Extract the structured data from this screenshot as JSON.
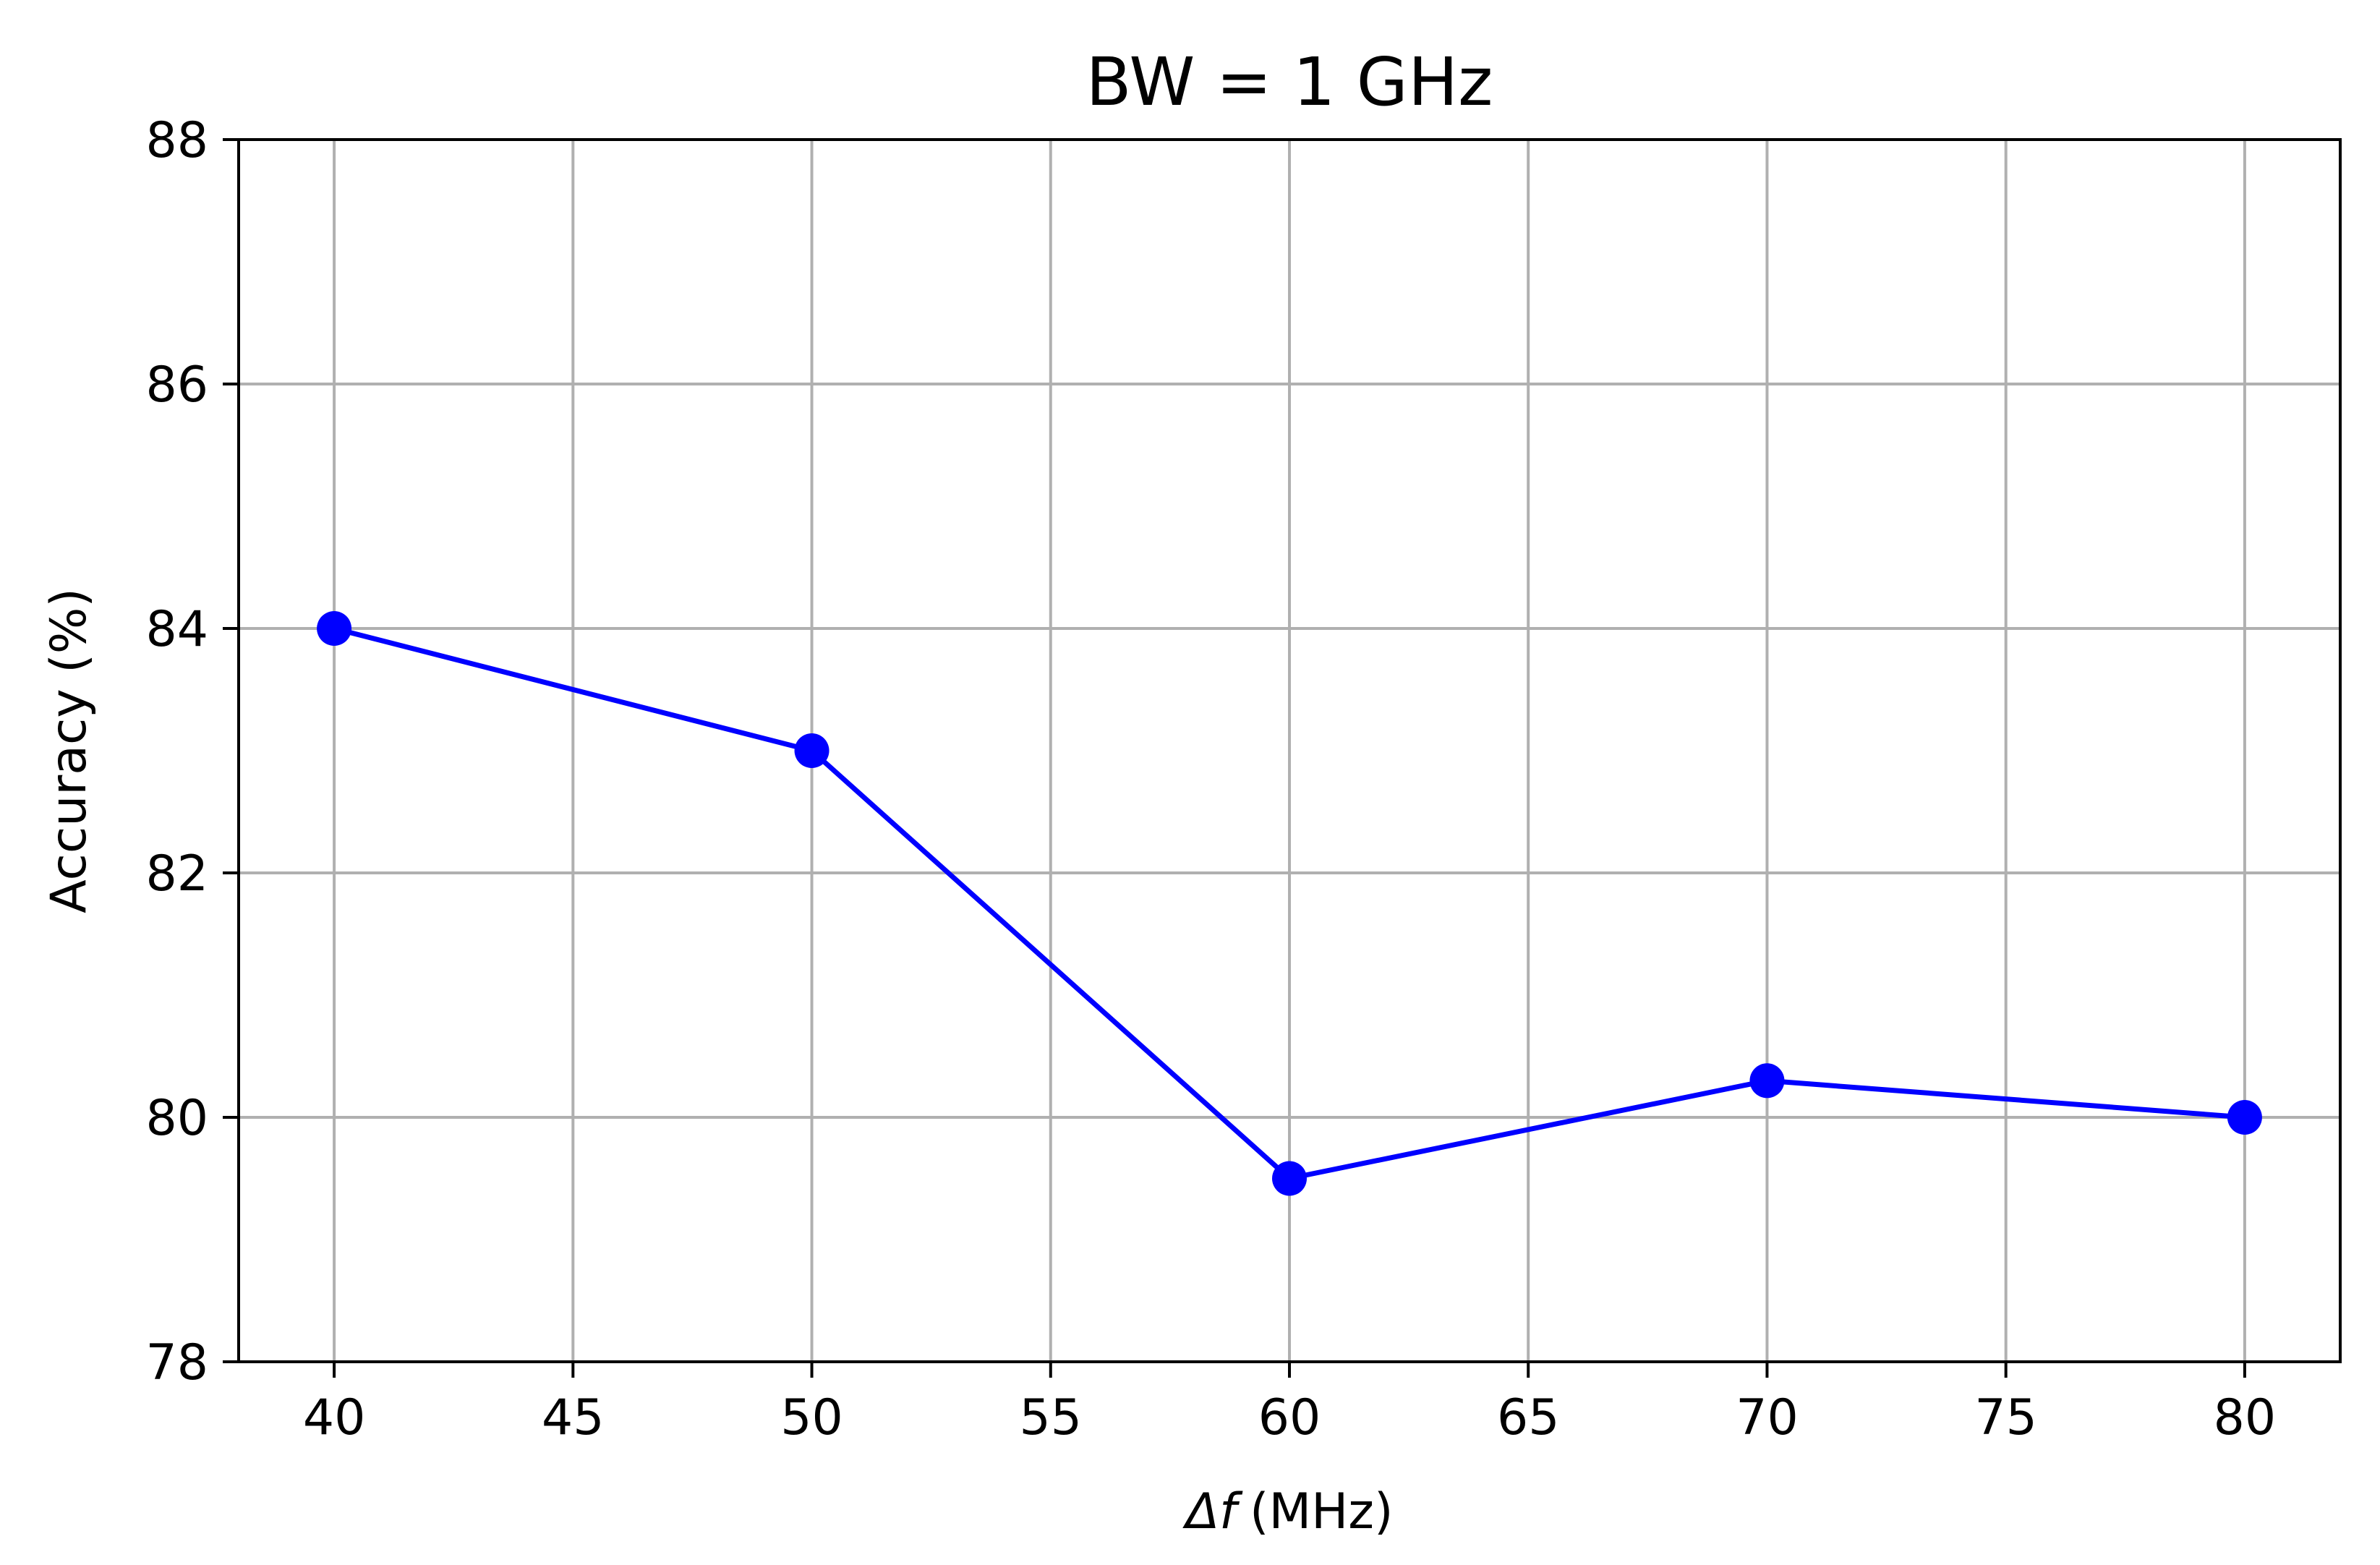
{
  "chart_data": {
    "type": "line",
    "title": "BW = 1 GHz",
    "xlabel_symbol": "Δf",
    "xlabel_unit": "(MHz)",
    "ylabel": "Accuracy (%)",
    "xlim": [
      38,
      82
    ],
    "ylim": [
      78,
      88
    ],
    "xticks": [
      40,
      45,
      50,
      55,
      60,
      65,
      70,
      75,
      80
    ],
    "yticks": [
      78,
      80,
      82,
      84,
      86,
      88
    ],
    "grid": true,
    "series": [
      {
        "color": "#0000ff",
        "marker": "circle",
        "x": [
          40,
          50,
          60,
          70,
          80
        ],
        "y": [
          84.0,
          83.0,
          79.5,
          80.3,
          80.0
        ]
      }
    ]
  }
}
